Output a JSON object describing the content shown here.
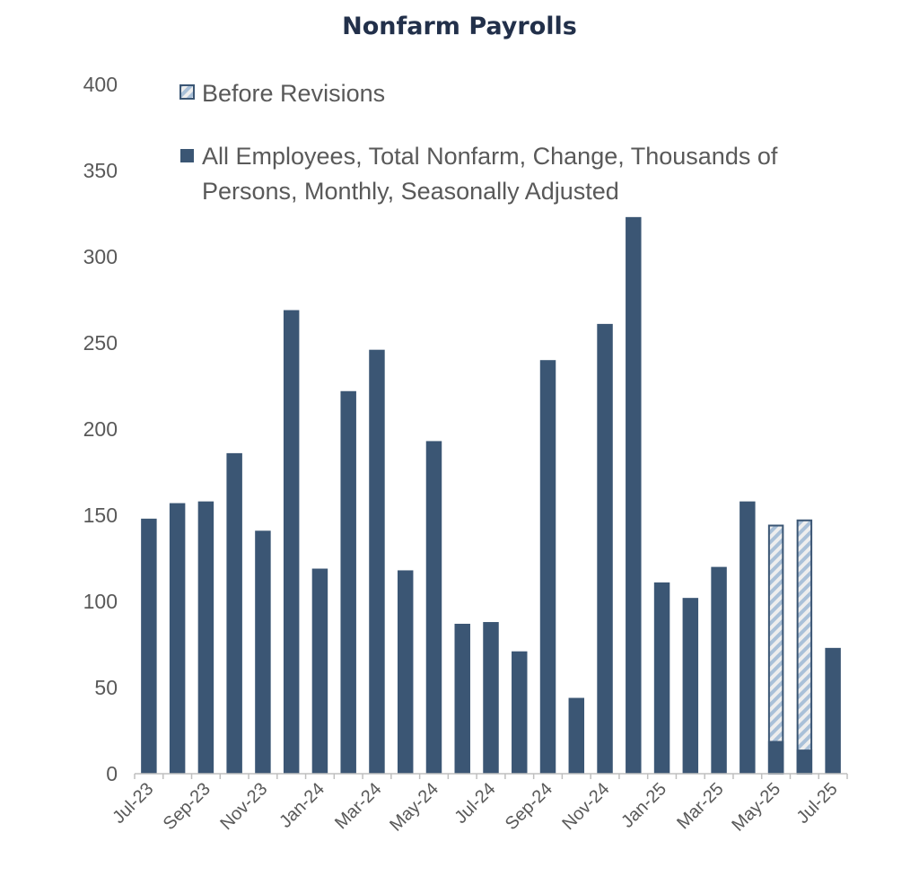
{
  "chart_data": {
    "type": "bar",
    "title": "Nonfarm Payrolls",
    "xlabel": "",
    "ylabel": "",
    "ylim": [
      0,
      400
    ],
    "yticks": [
      0,
      50,
      100,
      150,
      200,
      250,
      300,
      350,
      400
    ],
    "categories": [
      "Jul-23",
      "Aug-23",
      "Sep-23",
      "Oct-23",
      "Nov-23",
      "Dec-23",
      "Jan-24",
      "Feb-24",
      "Mar-24",
      "Apr-24",
      "May-24",
      "Jun-24",
      "Jul-24",
      "Aug-24",
      "Sep-24",
      "Oct-24",
      "Nov-24",
      "Dec-24",
      "Jan-25",
      "Feb-25",
      "Mar-25",
      "Apr-25",
      "May-25",
      "Jun-25",
      "Jul-25"
    ],
    "x_tick_labels": [
      "Jul-23",
      "Sep-23",
      "Nov-23",
      "Jan-24",
      "Mar-24",
      "May-24",
      "Jul-24",
      "Sep-24",
      "Nov-24",
      "Jan-25",
      "Mar-25",
      "May-25",
      "Jul-25"
    ],
    "grid": false,
    "legend_position": "top-left",
    "series": [
      {
        "name": "All Employees, Total Nonfarm, Change, Thousands of Persons, Monthly, Seasonally Adjusted",
        "legend_lines": [
          "All Employees, Total Nonfarm, Change, Thousands of",
          "Persons, Monthly, Seasonally Adjusted"
        ],
        "color": "#3b5674",
        "values": [
          148,
          157,
          158,
          186,
          141,
          269,
          119,
          222,
          246,
          118,
          193,
          87,
          88,
          71,
          240,
          44,
          261,
          323,
          111,
          102,
          120,
          158,
          19,
          14,
          73
        ]
      },
      {
        "name": "Before Revisions",
        "legend_lines": [
          "Before Revisions"
        ],
        "color": "#a9c0d8",
        "values": [
          null,
          null,
          null,
          null,
          null,
          null,
          null,
          null,
          null,
          null,
          null,
          null,
          null,
          null,
          null,
          null,
          null,
          null,
          null,
          null,
          null,
          null,
          144,
          147,
          null
        ]
      }
    ]
  }
}
